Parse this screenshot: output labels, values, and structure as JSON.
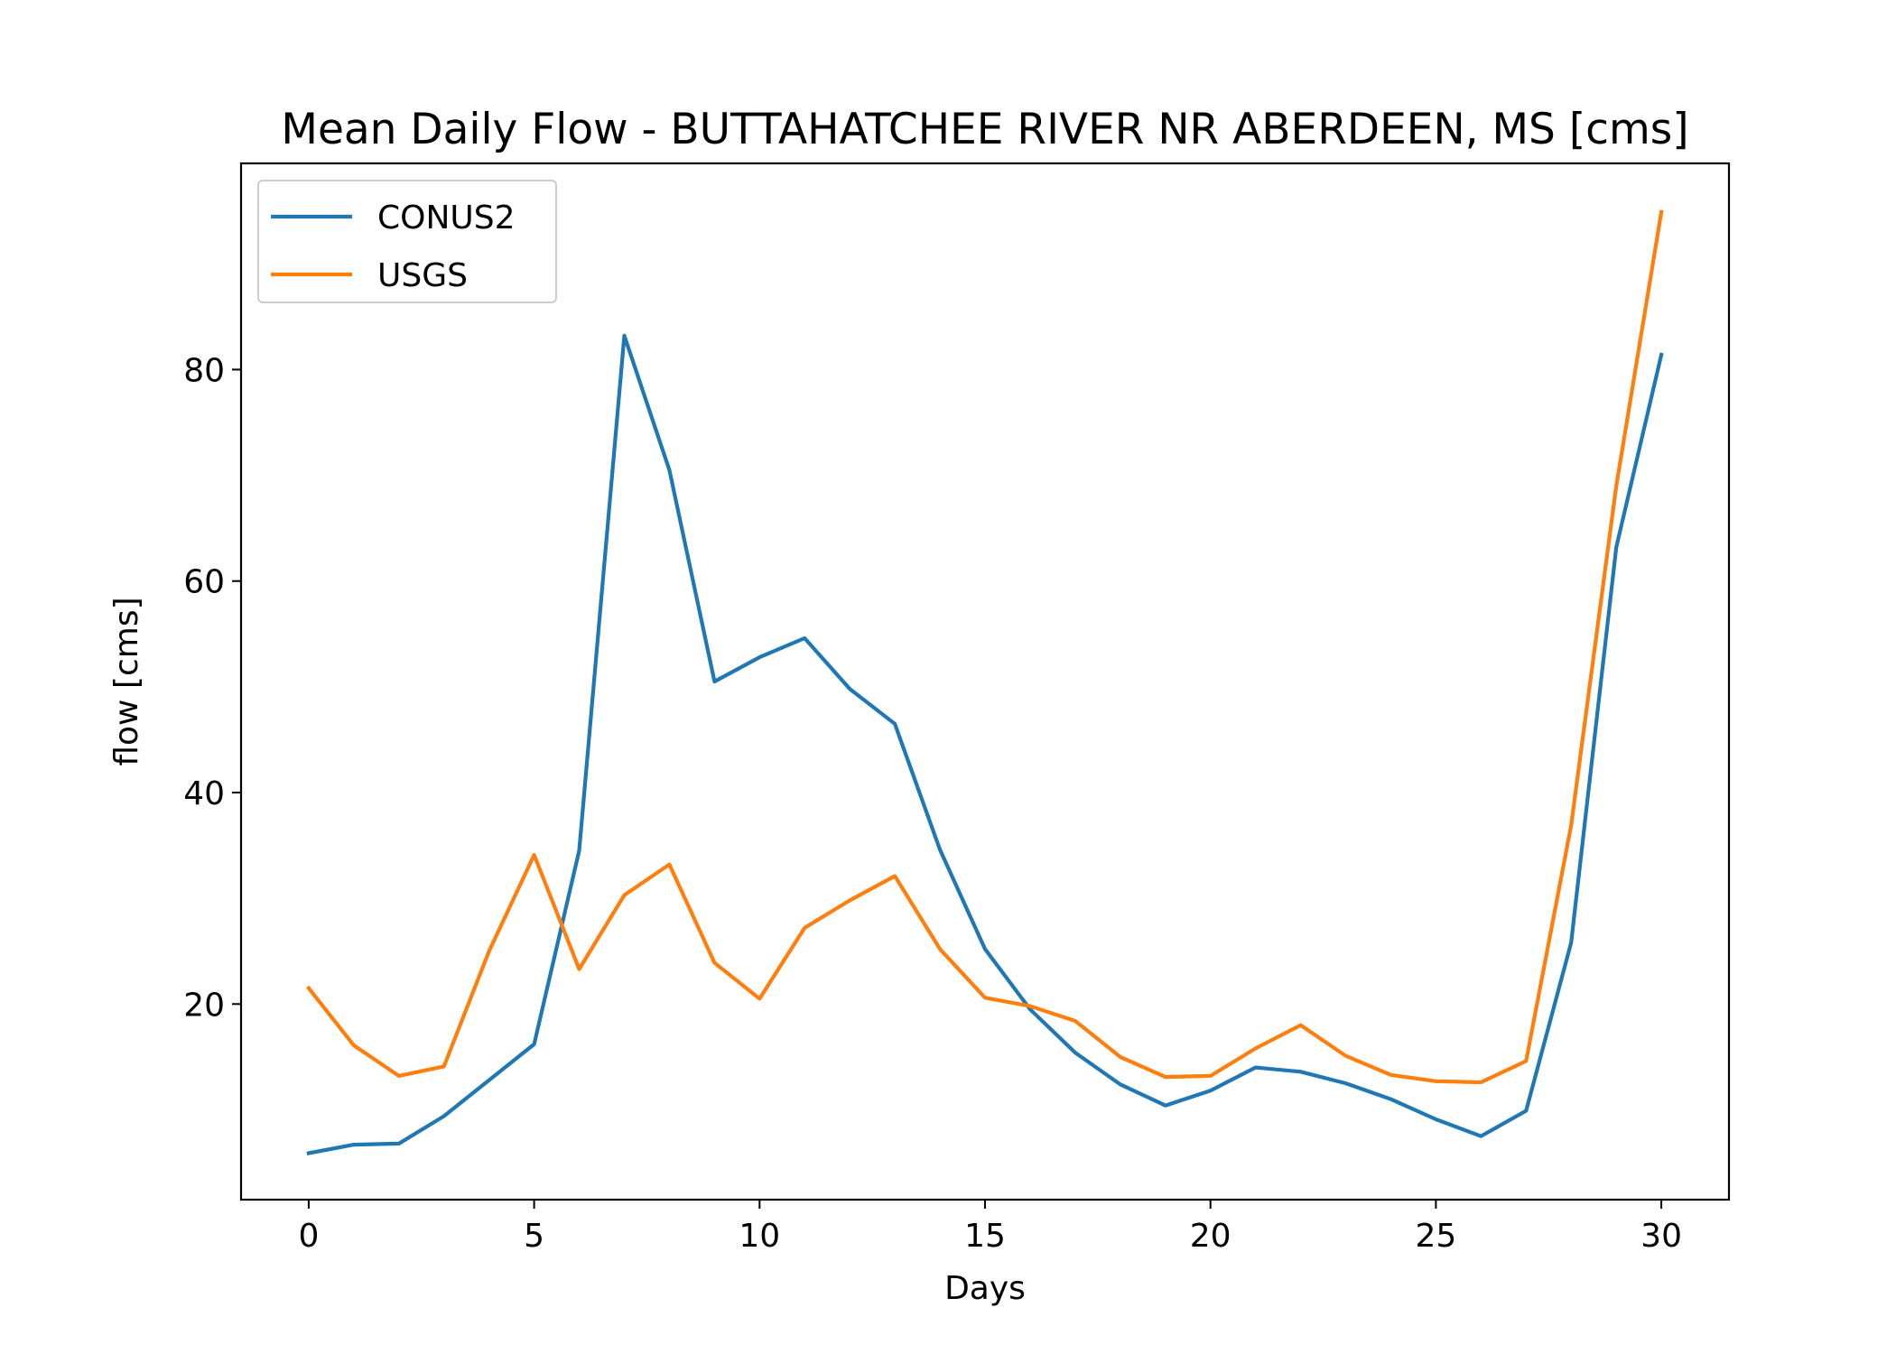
{
  "chart_data": {
    "type": "line",
    "title": "Mean Daily Flow - BUTTAHATCHEE RIVER NR ABERDEEN, MS [cms]",
    "xlabel": "Days",
    "ylabel": "flow [cms]",
    "xlim": [
      -1.5,
      31.5
    ],
    "ylim": [
      1.5,
      99.5
    ],
    "xticks": [
      0,
      5,
      10,
      15,
      20,
      25,
      30
    ],
    "yticks": [
      20,
      40,
      60,
      80
    ],
    "grid": false,
    "legend_position": "upper-left",
    "x": [
      0,
      1,
      2,
      3,
      4,
      5,
      6,
      7,
      8,
      9,
      10,
      11,
      12,
      13,
      14,
      15,
      16,
      17,
      18,
      19,
      20,
      21,
      22,
      23,
      24,
      25,
      26,
      27,
      28,
      29,
      30
    ],
    "series": [
      {
        "name": "CONUS2",
        "color": "#1f77b4",
        "values": [
          5.9,
          6.7,
          6.8,
          9.4,
          12.8,
          16.2,
          34.5,
          83.2,
          70.5,
          50.5,
          52.8,
          54.6,
          49.8,
          46.5,
          34.6,
          25.2,
          19.5,
          15.4,
          12.4,
          10.4,
          11.8,
          14.0,
          13.6,
          12.5,
          11.0,
          9.1,
          7.5,
          9.9,
          25.8,
          63.2,
          81.4
        ]
      },
      {
        "name": "USGS",
        "color": "#ff7f0e",
        "values": [
          21.5,
          16.1,
          13.2,
          14.1,
          25.0,
          34.1,
          23.3,
          30.3,
          33.2,
          23.9,
          20.5,
          27.2,
          29.8,
          32.1,
          25.2,
          20.6,
          19.8,
          18.4,
          15.0,
          13.1,
          13.2,
          15.8,
          18.0,
          15.1,
          13.3,
          12.7,
          12.6,
          14.6,
          36.9,
          69.0,
          94.9
        ]
      }
    ]
  }
}
